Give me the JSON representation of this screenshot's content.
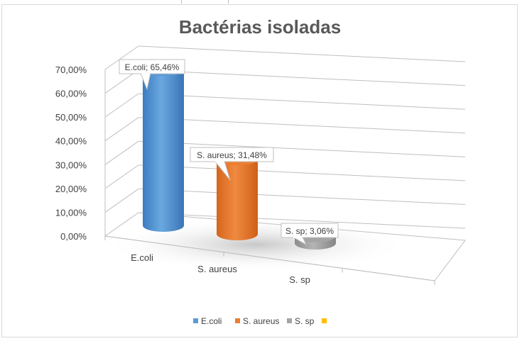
{
  "chart_data": {
    "type": "bar",
    "title": "Bactérias isoladas",
    "categories": [
      "E.coli",
      "S. aureus",
      "S. sp"
    ],
    "values": [
      65.46,
      31.48,
      3.06
    ],
    "value_labels": [
      "E.coli; 65,46%",
      "S. aureus; 31,48%",
      "S. sp; 3,06%"
    ],
    "colors": [
      "#5b9bd5",
      "#ed7d31",
      "#a5a5a5"
    ],
    "ylim": [
      0,
      70
    ],
    "yticks": [
      "0,00%",
      "10,00%",
      "20,00%",
      "30,00%",
      "40,00%",
      "50,00%",
      "60,00%",
      "70,00%"
    ],
    "grid": true,
    "style": "3d-cylinder",
    "legend_position": "bottom",
    "legend": [
      {
        "label": "E.coli",
        "color": "#5b9bd5"
      },
      {
        "label": "S. aureus",
        "color": "#ed7d31"
      },
      {
        "label": "S. sp",
        "color": "#a5a5a5"
      },
      {
        "label": "",
        "color": "#ffc000"
      }
    ]
  }
}
